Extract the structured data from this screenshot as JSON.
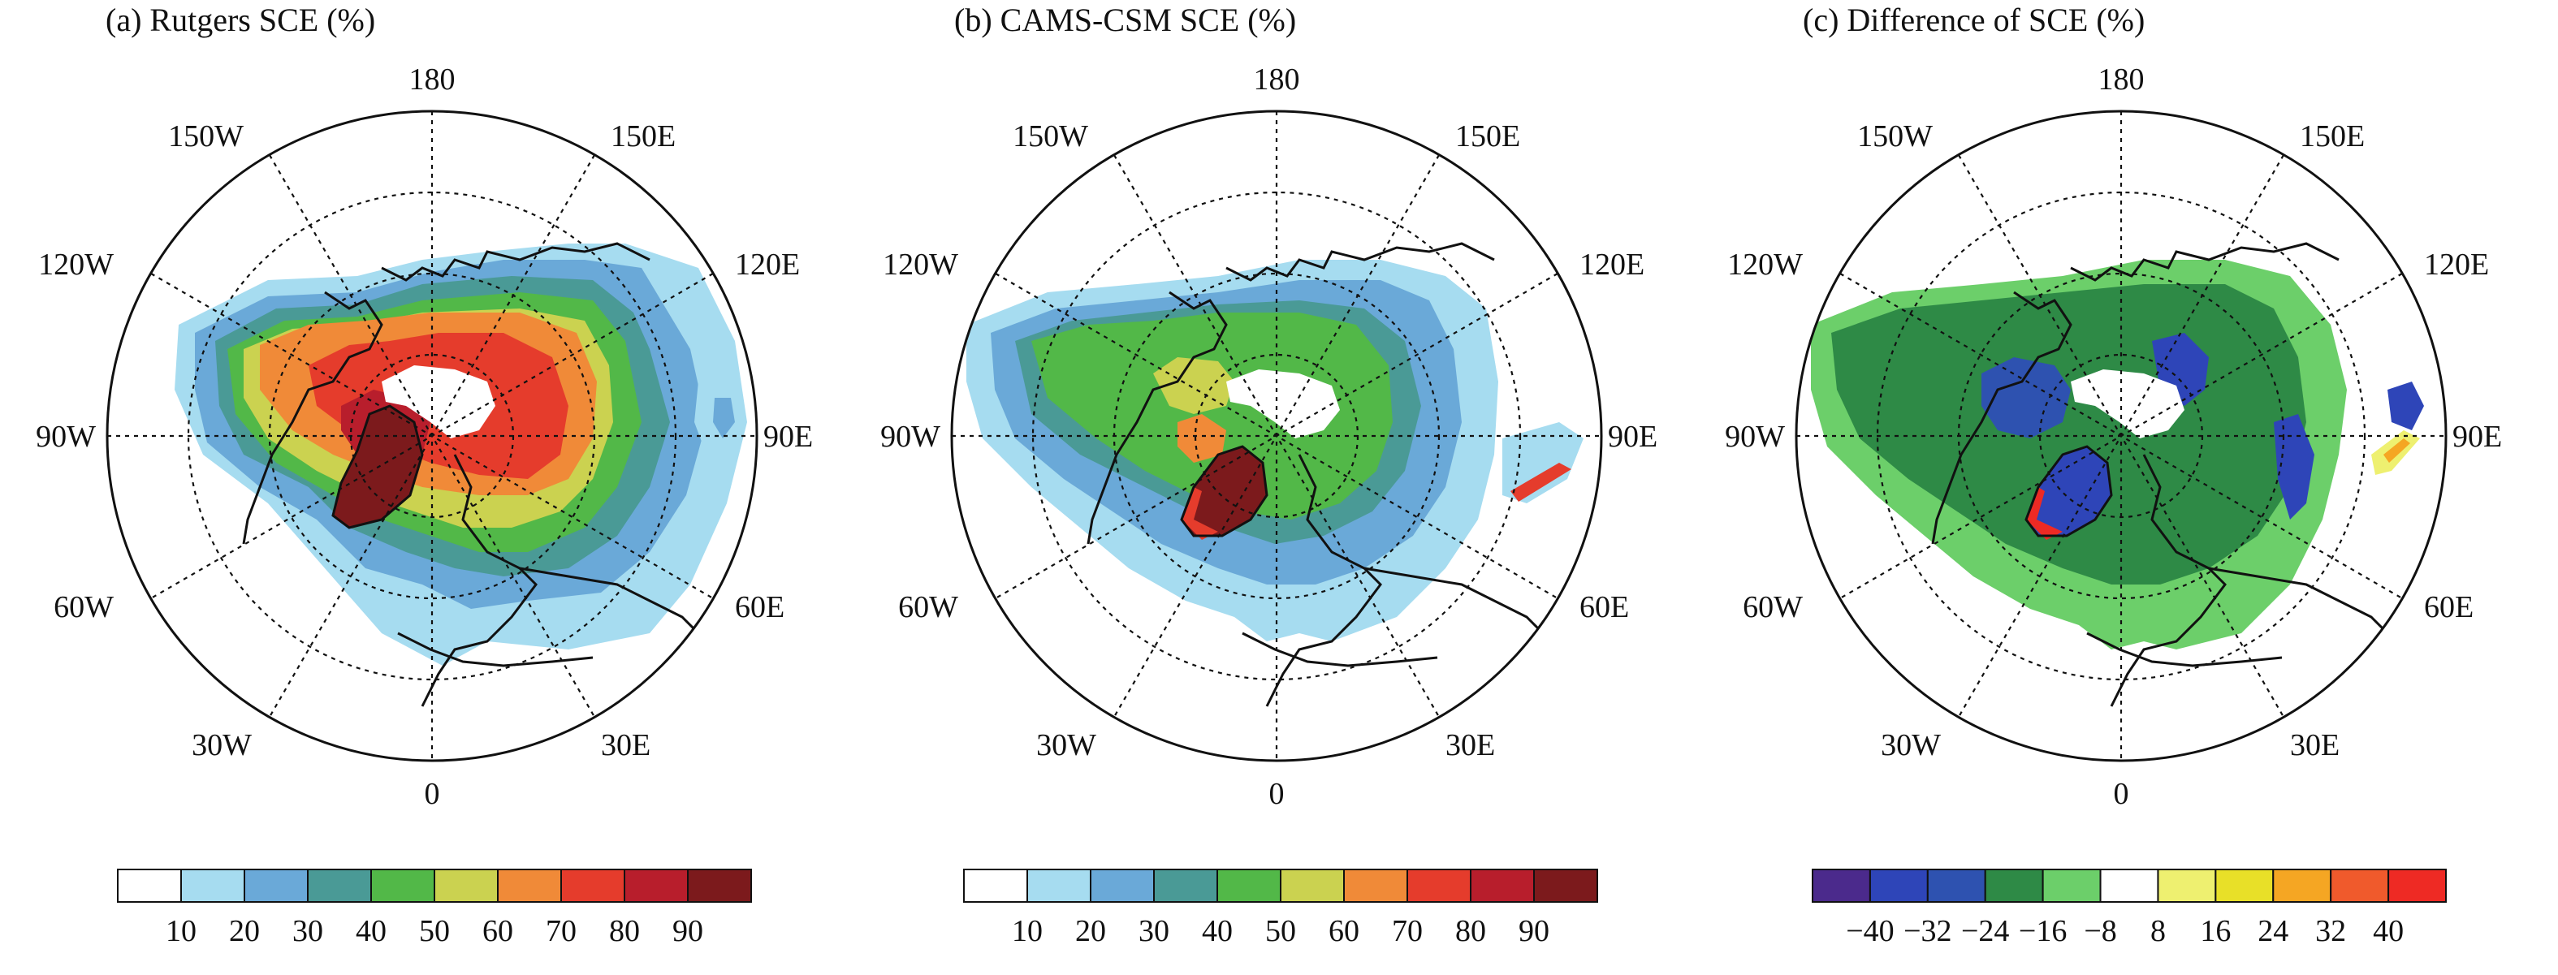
{
  "panels": [
    {
      "title": "(a) Rutgers SCE (%)",
      "lon_labels": [
        "180",
        "150E",
        "120E",
        "90E",
        "60E",
        "30E",
        "0",
        "30W",
        "60W",
        "90W",
        "120W",
        "150W"
      ],
      "colorbar": {
        "colors": [
          "#ffffff",
          "#a6dcf0",
          "#6aa9d8",
          "#4a9a96",
          "#52b848",
          "#cbd250",
          "#f08a38",
          "#e53c2c",
          "#b81e2c",
          "#7c1a1c"
        ],
        "labels": [
          "10",
          "20",
          "30",
          "40",
          "50",
          "60",
          "70",
          "80",
          "90"
        ]
      }
    },
    {
      "title": "(b) CAMS-CSM SCE (%)",
      "lon_labels": [
        "180",
        "150E",
        "120E",
        "90E",
        "60E",
        "30E",
        "0",
        "30W",
        "60W",
        "90W",
        "120W",
        "150W"
      ],
      "colorbar": {
        "colors": [
          "#ffffff",
          "#a6dcf0",
          "#6aa9d8",
          "#4a9a96",
          "#52b848",
          "#cbd250",
          "#f08a38",
          "#e53c2c",
          "#b81e2c",
          "#7c1a1c"
        ],
        "labels": [
          "10",
          "20",
          "30",
          "40",
          "50",
          "60",
          "70",
          "80",
          "90"
        ]
      }
    },
    {
      "title": "(c) Difference of SCE (%)",
      "lon_labels": [
        "180",
        "150E",
        "120E",
        "90E",
        "60E",
        "30E",
        "0",
        "30W",
        "60W",
        "90W",
        "120W",
        "150W"
      ],
      "colorbar": {
        "colors": [
          "#4b2a8c",
          "#2e45b8",
          "#2e52b0",
          "#2e8a46",
          "#6ccf6a",
          "#ffffff",
          "#eef070",
          "#e8e028",
          "#f5a623",
          "#f05a2c",
          "#ee2a24"
        ],
        "labels": [
          "−40",
          "−32",
          "−24",
          "−16",
          "−8",
          "8",
          "16",
          "24",
          "32",
          "40"
        ]
      }
    }
  ]
}
